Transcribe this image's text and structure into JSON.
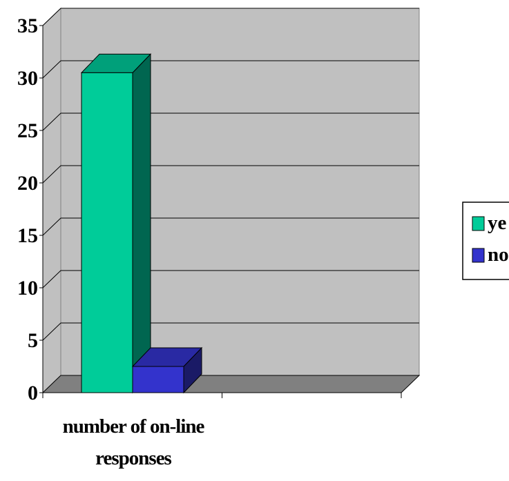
{
  "chart_data": {
    "type": "bar",
    "title": "",
    "xlabel": "",
    "ylabel": "",
    "categories": [
      "number of on-line responses"
    ],
    "category_label_lines": [
      "number of on-line",
      "responses"
    ],
    "series": [
      {
        "name": "ye",
        "values": [
          30.5
        ],
        "color": "#00CC99",
        "side_color": "#006650",
        "top_color": "#00A07A"
      },
      {
        "name": "no",
        "values": [
          2.5
        ],
        "color": "#3333CC",
        "side_color": "#1A1A66",
        "top_color": "#2929A3"
      }
    ],
    "ylim": [
      0,
      35
    ],
    "yticks": [
      0,
      5,
      10,
      15,
      20,
      25,
      30,
      35
    ],
    "grid": true,
    "legend_position": "right",
    "wall_color": "#C0C0C0",
    "floor_color": "#808080"
  }
}
